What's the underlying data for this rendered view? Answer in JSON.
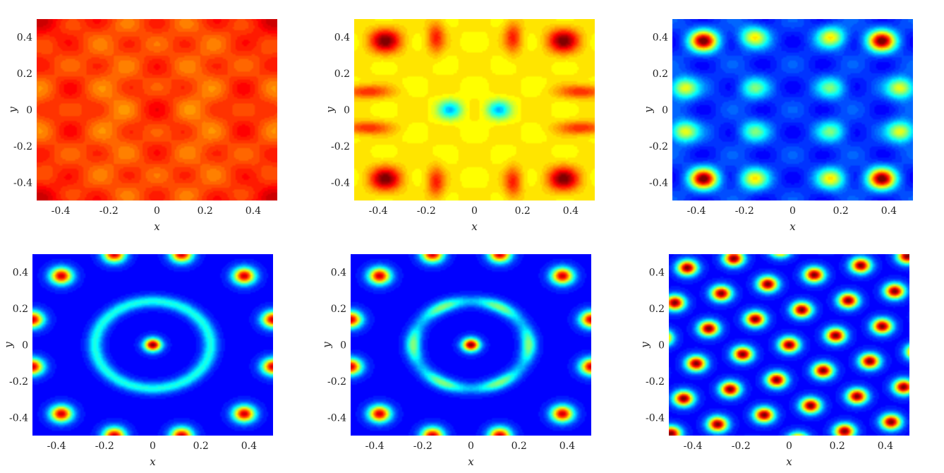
{
  "figure": {
    "colormap": "jet",
    "panel_count": 6
  },
  "chart_data": [
    {
      "type": "heatmap",
      "id": "panel-1",
      "variant": "uniform-red",
      "xlabel": "x",
      "ylabel": "y",
      "xlim": [
        -0.5,
        0.5
      ],
      "ylim": [
        -0.5,
        0.5
      ],
      "x_ticks": [
        -0.4,
        -0.2,
        0,
        0.2,
        0.4
      ],
      "y_ticks": [
        -0.4,
        -0.2,
        0,
        0.2,
        0.4
      ],
      "x_tick_labels": [
        "-0.4",
        "-0.2",
        "0",
        "0.2",
        "0.4"
      ],
      "y_tick_labels": [
        "-0.4",
        "-0.2",
        "0",
        "0.2",
        "0.4"
      ]
    },
    {
      "type": "heatmap",
      "id": "panel-2",
      "variant": "square-lattice-mixed",
      "xlabel": "x",
      "ylabel": "y",
      "xlim": [
        -0.5,
        0.5
      ],
      "ylim": [
        -0.5,
        0.5
      ],
      "x_ticks": [
        -0.4,
        -0.2,
        0,
        0.2,
        0.4
      ],
      "y_ticks": [
        -0.4,
        -0.2,
        0,
        0.2,
        0.4
      ],
      "x_tick_labels": [
        "-0.4",
        "-0.2",
        "0",
        "0.2",
        "0.4"
      ],
      "y_tick_labels": [
        "-0.4",
        "-0.2",
        "0",
        "0.2",
        "0.4"
      ]
    },
    {
      "type": "heatmap",
      "id": "panel-3",
      "variant": "square-lattice-spots",
      "xlabel": "x",
      "ylabel": "y",
      "xlim": [
        -0.5,
        0.5
      ],
      "ylim": [
        -0.5,
        0.5
      ],
      "x_ticks": [
        -0.4,
        -0.2,
        0,
        0.2,
        0.4
      ],
      "y_ticks": [
        -0.4,
        -0.2,
        0,
        0.2,
        0.4
      ],
      "x_tick_labels": [
        "-0.4",
        "-0.2",
        "0",
        "0.2",
        "0.4"
      ],
      "y_tick_labels": [
        "-0.4",
        "-0.2",
        "0",
        "0.2",
        "0.4"
      ]
    },
    {
      "type": "heatmap",
      "id": "panel-4",
      "variant": "ring-with-center",
      "xlabel": "x",
      "ylabel": "y",
      "xlim": [
        -0.5,
        0.5
      ],
      "ylim": [
        -0.5,
        0.5
      ],
      "x_ticks": [
        -0.4,
        -0.2,
        0,
        0.2,
        0.4
      ],
      "y_ticks": [
        -0.4,
        -0.2,
        0,
        0.2,
        0.4
      ],
      "x_tick_labels": [
        "-0.4",
        "-0.2",
        "0",
        "0.2",
        "0.4"
      ],
      "y_tick_labels": [
        "-0.4",
        "-0.2",
        "0",
        "0.2",
        "0.4"
      ]
    },
    {
      "type": "heatmap",
      "id": "panel-5",
      "variant": "hexagonal-ring",
      "xlabel": "x",
      "ylabel": "y",
      "xlim": [
        -0.5,
        0.5
      ],
      "ylim": [
        -0.5,
        0.5
      ],
      "x_ticks": [
        -0.4,
        -0.2,
        0,
        0.2,
        0.4
      ],
      "y_ticks": [
        -0.4,
        -0.2,
        0,
        0.2,
        0.4
      ],
      "x_tick_labels": [
        "-0.4",
        "-0.2",
        "0",
        "0.2",
        "0.4"
      ],
      "y_tick_labels": [
        "-0.4",
        "-0.2",
        "0",
        "0.2",
        "0.4"
      ]
    },
    {
      "type": "heatmap",
      "id": "panel-6",
      "variant": "hexagonal-lattice",
      "xlabel": "x",
      "ylabel": "y",
      "xlim": [
        -0.5,
        0.5
      ],
      "ylim": [
        -0.5,
        0.5
      ],
      "x_ticks": [
        -0.4,
        -0.2,
        0,
        0.2,
        0.4
      ],
      "y_ticks": [
        -0.4,
        -0.2,
        0,
        0.2,
        0.4
      ],
      "x_tick_labels": [
        "-0.4",
        "-0.2",
        "0",
        "0.2",
        "0.4"
      ],
      "y_tick_labels": [
        "-0.4",
        "-0.2",
        "0",
        "0.2",
        "0.4"
      ]
    }
  ]
}
